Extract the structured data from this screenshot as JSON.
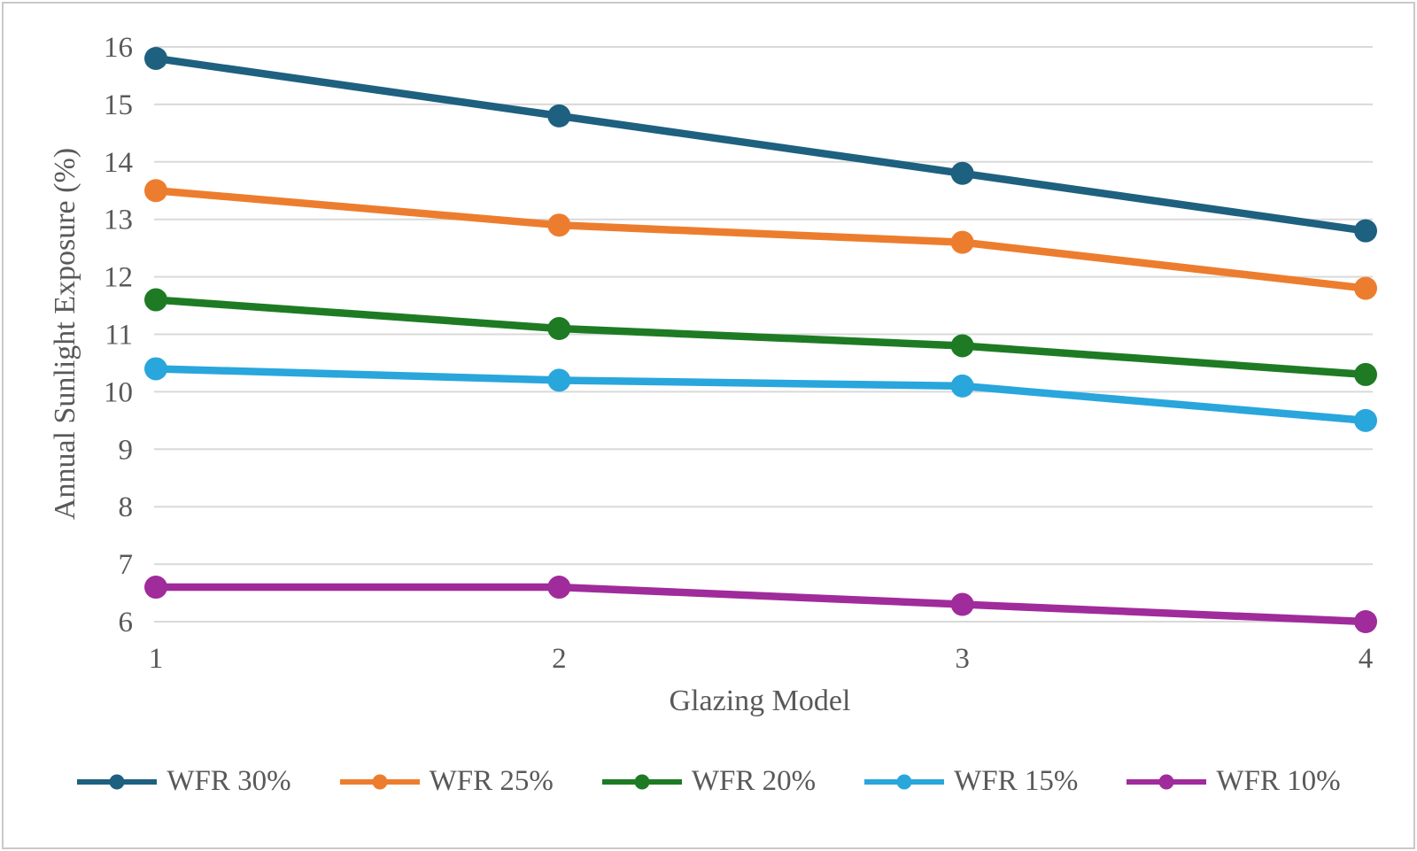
{
  "chart_data": {
    "type": "line",
    "title": "",
    "xlabel": "Glazing Model",
    "ylabel": "Annual Sunlight Exposure (%)",
    "categories": [
      "1",
      "2",
      "3",
      "4"
    ],
    "x": [
      1,
      2,
      3,
      4
    ],
    "xlim": [
      1,
      4
    ],
    "ylim": [
      6,
      16
    ],
    "yticks": [
      6,
      7,
      8,
      9,
      10,
      11,
      12,
      13,
      14,
      15,
      16
    ],
    "grid": "horizontal-only",
    "legend_position": "bottom",
    "series": [
      {
        "name": "WFR 30%",
        "color": "#1E607F",
        "values": [
          15.8,
          14.8,
          13.8,
          12.8
        ]
      },
      {
        "name": "WFR 25%",
        "color": "#ED7D2E",
        "values": [
          13.5,
          12.9,
          12.6,
          11.8
        ]
      },
      {
        "name": "WFR 20%",
        "color": "#1E7B24",
        "values": [
          11.6,
          11.1,
          10.8,
          10.3
        ]
      },
      {
        "name": "WFR 15%",
        "color": "#29A6DC",
        "values": [
          10.4,
          10.2,
          10.1,
          9.5
        ]
      },
      {
        "name": "WFR 10%",
        "color": "#A02B9B",
        "values": [
          6.6,
          6.6,
          6.3,
          6.0
        ]
      }
    ],
    "colors": {
      "gridline": "#D9D9D9",
      "text": "#595959",
      "frame_border": "#C9C9C9",
      "background": "#FFFFFF"
    }
  }
}
